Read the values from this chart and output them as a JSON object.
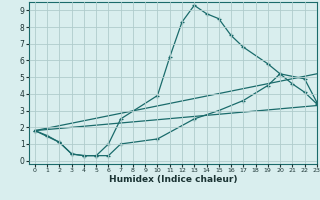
{
  "xlabel": "Humidex (Indice chaleur)",
  "bg_color": "#d9eeee",
  "grid_color": "#b0cccc",
  "line_color": "#1a6b6b",
  "xlim": [
    -0.5,
    23
  ],
  "ylim": [
    -0.2,
    9.5
  ],
  "xticks": [
    0,
    1,
    2,
    3,
    4,
    5,
    6,
    7,
    8,
    9,
    10,
    11,
    12,
    13,
    14,
    15,
    16,
    17,
    18,
    19,
    20,
    21,
    22,
    23
  ],
  "yticks": [
    0,
    1,
    2,
    3,
    4,
    5,
    6,
    7,
    8,
    9
  ],
  "series": [
    {
      "x": [
        0,
        1,
        2,
        3,
        4,
        5,
        6,
        7,
        10,
        11,
        12,
        13,
        14,
        15,
        16,
        17,
        19,
        20,
        21,
        22,
        23
      ],
      "y": [
        1.8,
        1.5,
        1.1,
        0.4,
        0.3,
        0.3,
        1.0,
        2.5,
        3.9,
        6.2,
        8.3,
        9.3,
        8.8,
        8.5,
        7.5,
        6.8,
        5.8,
        5.2,
        4.6,
        4.1,
        3.4
      ],
      "marker": true
    },
    {
      "x": [
        0,
        2,
        3,
        4,
        5,
        6,
        7,
        10,
        13,
        15,
        17,
        19,
        20,
        22,
        23
      ],
      "y": [
        1.8,
        1.1,
        0.4,
        0.3,
        0.3,
        0.3,
        1.0,
        1.3,
        2.5,
        3.0,
        3.6,
        4.5,
        5.2,
        4.9,
        3.5
      ],
      "marker": true
    },
    {
      "x": [
        0,
        23
      ],
      "y": [
        1.8,
        5.2
      ],
      "marker": false
    },
    {
      "x": [
        0,
        23
      ],
      "y": [
        1.8,
        3.3
      ],
      "marker": false
    }
  ]
}
